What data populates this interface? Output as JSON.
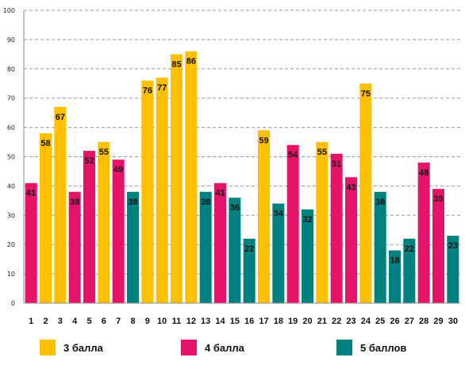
{
  "chart_data": {
    "type": "bar",
    "title": "",
    "xlabel": "",
    "ylabel": "",
    "ylim": [
      0,
      100
    ],
    "yticks": [
      0,
      10,
      20,
      30,
      40,
      50,
      60,
      70,
      80,
      90,
      100
    ],
    "grid": true,
    "legend_position": "bottom",
    "categories": [
      "1",
      "2",
      "3",
      "4",
      "5",
      "6",
      "7",
      "8",
      "9",
      "10",
      "11",
      "12",
      "13",
      "14",
      "15",
      "16",
      "17",
      "18",
      "19",
      "20",
      "21",
      "22",
      "23",
      "24",
      "25",
      "26",
      "27",
      "28",
      "29",
      "30"
    ],
    "values": [
      41,
      58,
      67,
      38,
      52,
      55,
      49,
      38,
      76,
      77,
      85,
      86,
      38,
      41,
      36,
      22,
      59,
      34,
      54,
      32,
      55,
      51,
      43,
      75,
      38,
      18,
      22,
      48,
      39,
      23
    ],
    "groups": [
      "4 балла",
      "3 балла",
      "3 балла",
      "4 балла",
      "4 балла",
      "3 балла",
      "4 балла",
      "5 баллов",
      "3 балла",
      "3 балла",
      "3 балла",
      "3 балла",
      "5 баллов",
      "4 балла",
      "5 баллов",
      "5 баллов",
      "3 балла",
      "5 баллов",
      "4 балла",
      "5 баллов",
      "3 балла",
      "4 балла",
      "4 балла",
      "3 балла",
      "5 баллов",
      "5 баллов",
      "5 баллов",
      "4 балла",
      "4 балла",
      "5 баллов"
    ],
    "legend": [
      {
        "name": "3 балла",
        "color": "#FFC000"
      },
      {
        "name": "4 балла",
        "color": "#E6136B"
      },
      {
        "name": "5 баллов",
        "color": "#00807E"
      }
    ]
  }
}
